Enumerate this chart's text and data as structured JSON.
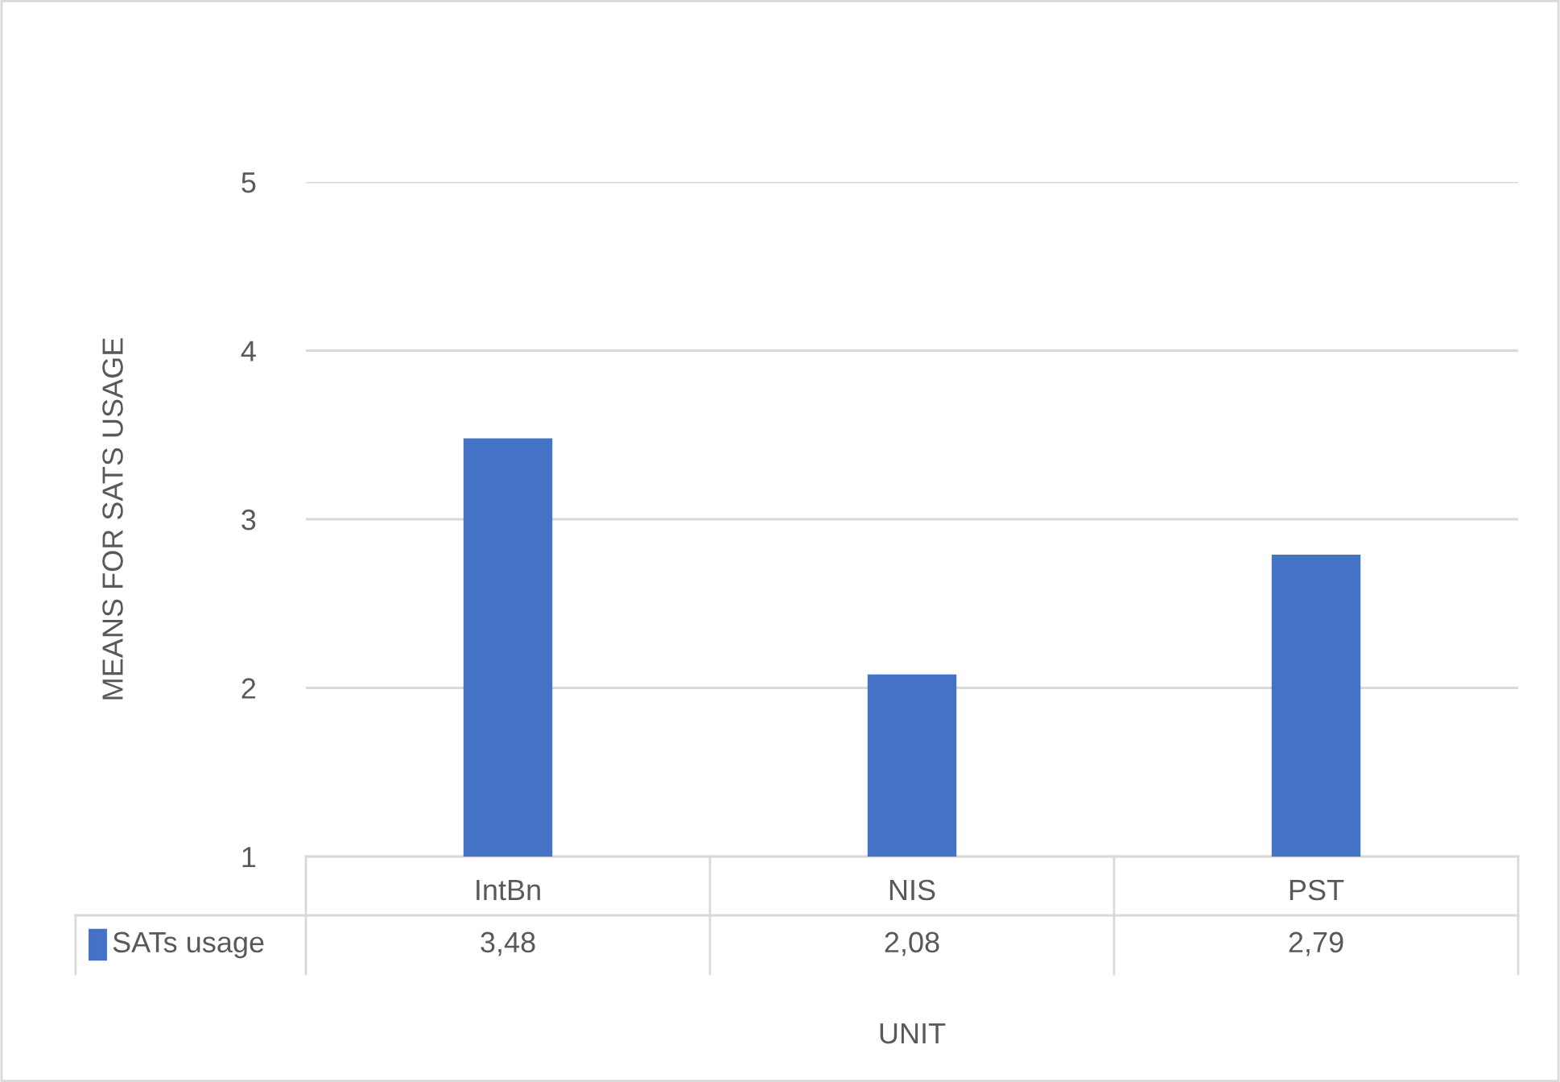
{
  "chart_data": {
    "type": "bar",
    "xlabel": "UNIT",
    "ylabel": "MEANS FOR SATS USAGE",
    "categories": [
      "IntBn",
      "NIS",
      "PST"
    ],
    "series": [
      {
        "name": "SATs usage",
        "color": "#4472c4",
        "values": [
          3.48,
          2.08,
          2.79
        ],
        "value_labels": [
          "3,48",
          "2,08",
          "2,79"
        ]
      }
    ],
    "ylim": [
      1,
      5
    ],
    "yticks": [
      1,
      2,
      3,
      4,
      5
    ],
    "grid": "y",
    "legend": "bottom"
  }
}
